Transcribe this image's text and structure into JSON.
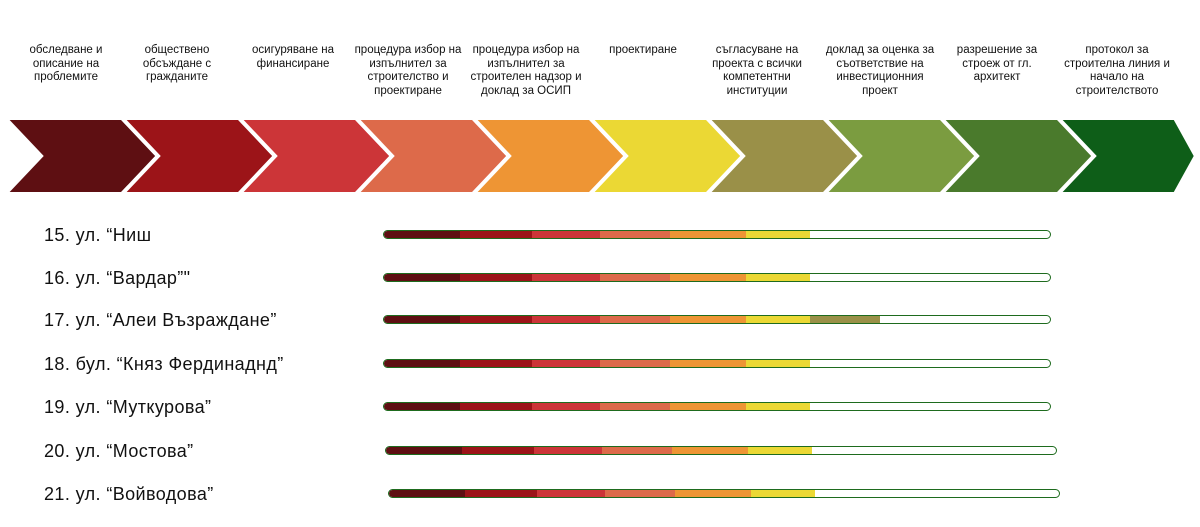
{
  "stages": [
    {
      "label": "обследване и описание на проблемите",
      "color": "#5e0f12"
    },
    {
      "label": "обществено обсъждане с гражданите",
      "color": "#9c1418"
    },
    {
      "label": "осигуряване на финансиране",
      "color": "#cc3538"
    },
    {
      "label": "процедура избор на изпълнител за строителство и проектиране",
      "color": "#dd6a4a"
    },
    {
      "label": "процедура избор на изпълнител за строителен надзор и доклад за ОСИП",
      "color": "#ee9534"
    },
    {
      "label": "проектиране",
      "color": "#ebd834"
    },
    {
      "label": "съгласуване на проекта с всички компетентни институции",
      "color": "#9a9048"
    },
    {
      "label": "доклад за оценка за съответствие на инвестиционния проект",
      "color": "#7b9c40"
    },
    {
      "label": "разрешение за строеж от гл. архитект",
      "color": "#4a7a2c"
    },
    {
      "label": "протокол за строителна линия и начало на строителството",
      "color": "#0e5e18"
    }
  ],
  "rows": [
    {
      "label": "15. ул. “Ниш",
      "stages_completed": 6
    },
    {
      "label": "16. ул. “Вардар”\"",
      "stages_completed": 6
    },
    {
      "label": "17. ул. “Алеи Възраждане”",
      "stages_completed": 7
    },
    {
      "label": "18. бул. “Княз Фердинаднд”",
      "stages_completed": 6
    },
    {
      "label": "19. ул. “Муткурова”",
      "stages_completed": 6
    },
    {
      "label": "20. ул. “Мостова”",
      "stages_completed": 6
    },
    {
      "label": "21. ул. “Войводова”",
      "stages_completed": 6
    }
  ],
  "total_stages": 10,
  "track_color": "#1e6b1e"
}
